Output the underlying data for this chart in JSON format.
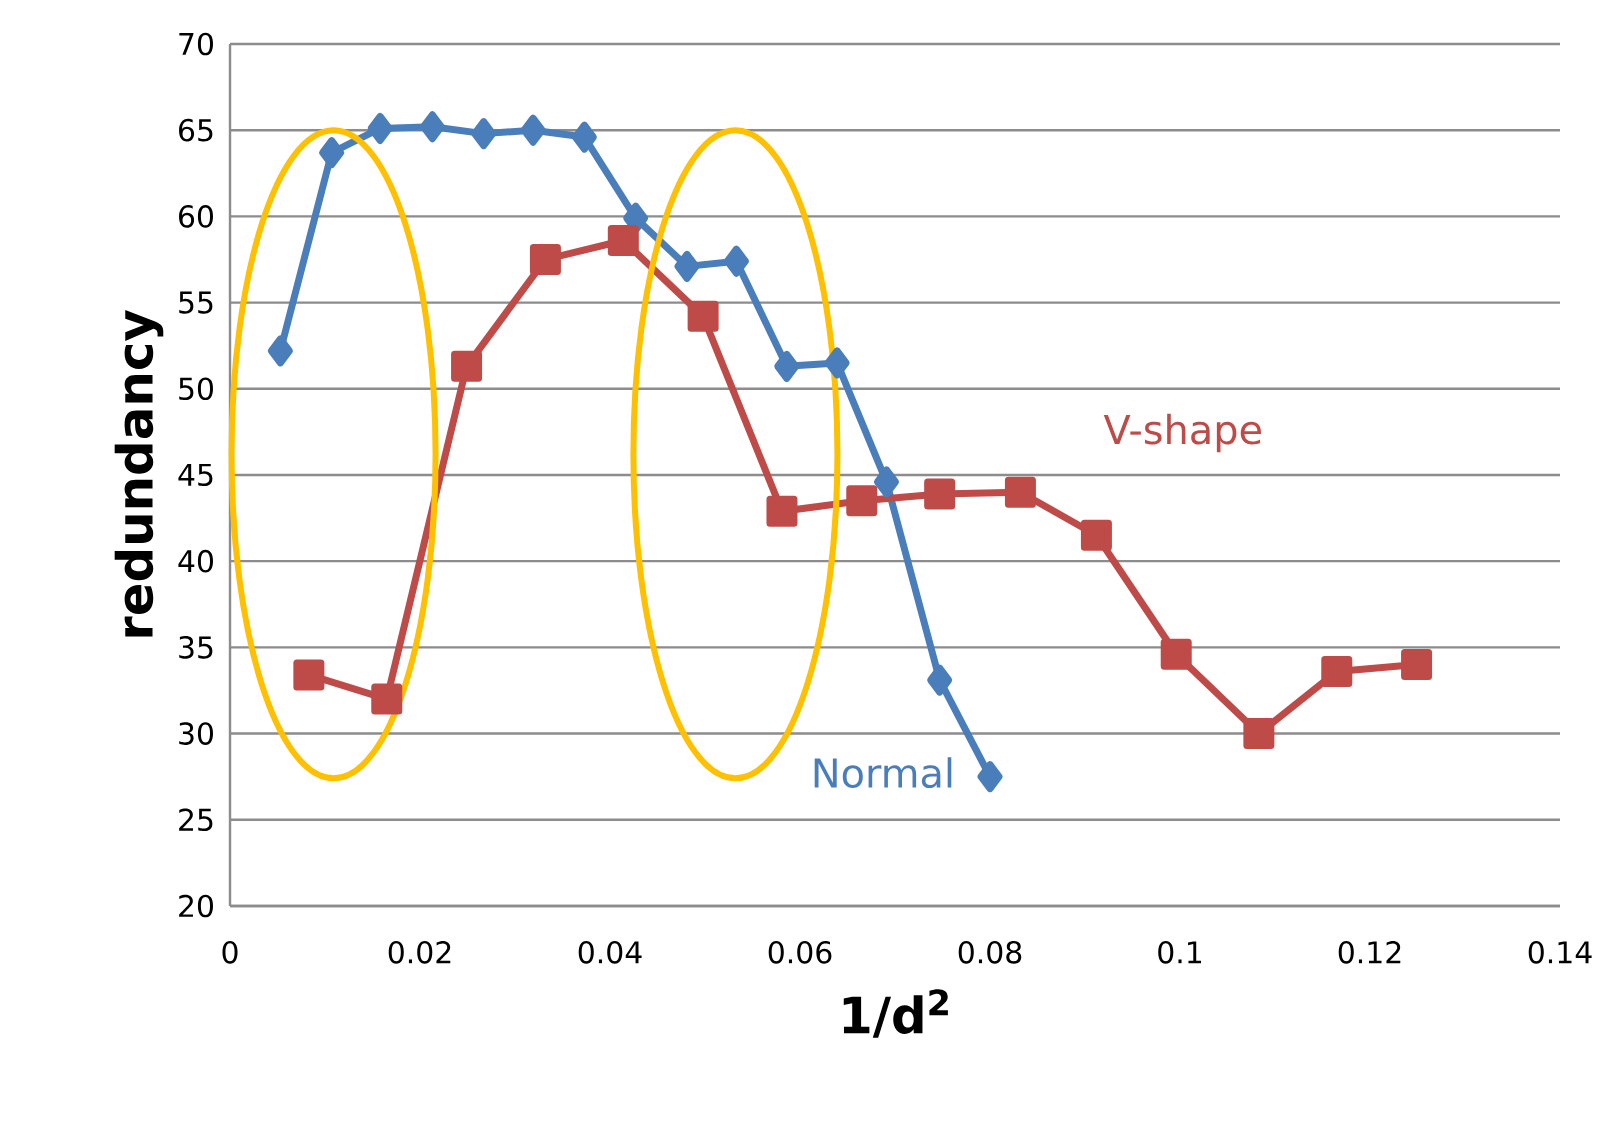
{
  "chart_data": {
    "type": "line",
    "xlabel": "1/d$^{2}$",
    "ylabel": "redundancy",
    "xlim": [
      0,
      0.14
    ],
    "xticks": [
      0,
      0.02,
      0.04,
      0.06,
      0.08,
      0.1,
      0.12,
      0.14
    ],
    "ylim": [
      20,
      70
    ],
    "yticks": [
      20,
      25,
      30,
      35,
      40,
      45,
      50,
      55,
      60,
      65,
      70
    ],
    "grid": "y",
    "line_style": "solid",
    "series": [
      {
        "name": "Normal",
        "color": "#4a7ebb",
        "marker": "diamond",
        "x": [
          0.0053,
          0.0107,
          0.0158,
          0.0213,
          0.0267,
          0.0319,
          0.0373,
          0.0427,
          0.0481,
          0.0533,
          0.0586,
          0.0639,
          0.0691,
          0.0747,
          0.08
        ],
        "values": [
          52.2,
          63.7,
          65.1,
          65.2,
          64.8,
          65.0,
          64.6,
          59.9,
          57.1,
          57.4,
          51.3,
          51.5,
          44.6,
          33.1,
          27.5
        ]
      },
      {
        "name": "V-shape",
        "color": "#be4b48",
        "marker": "square",
        "x": [
          0.0083,
          0.0165,
          0.0249,
          0.0332,
          0.0414,
          0.0498,
          0.0581,
          0.0665,
          0.0747,
          0.0832,
          0.0912,
          0.0996,
          0.1083,
          0.1165,
          0.1249
        ],
        "values": [
          33.4,
          32.0,
          51.3,
          57.5,
          58.6,
          54.2,
          42.9,
          43.5,
          43.9,
          44.0,
          41.5,
          34.6,
          30.0,
          33.6,
          34.0
        ]
      }
    ]
  }
}
